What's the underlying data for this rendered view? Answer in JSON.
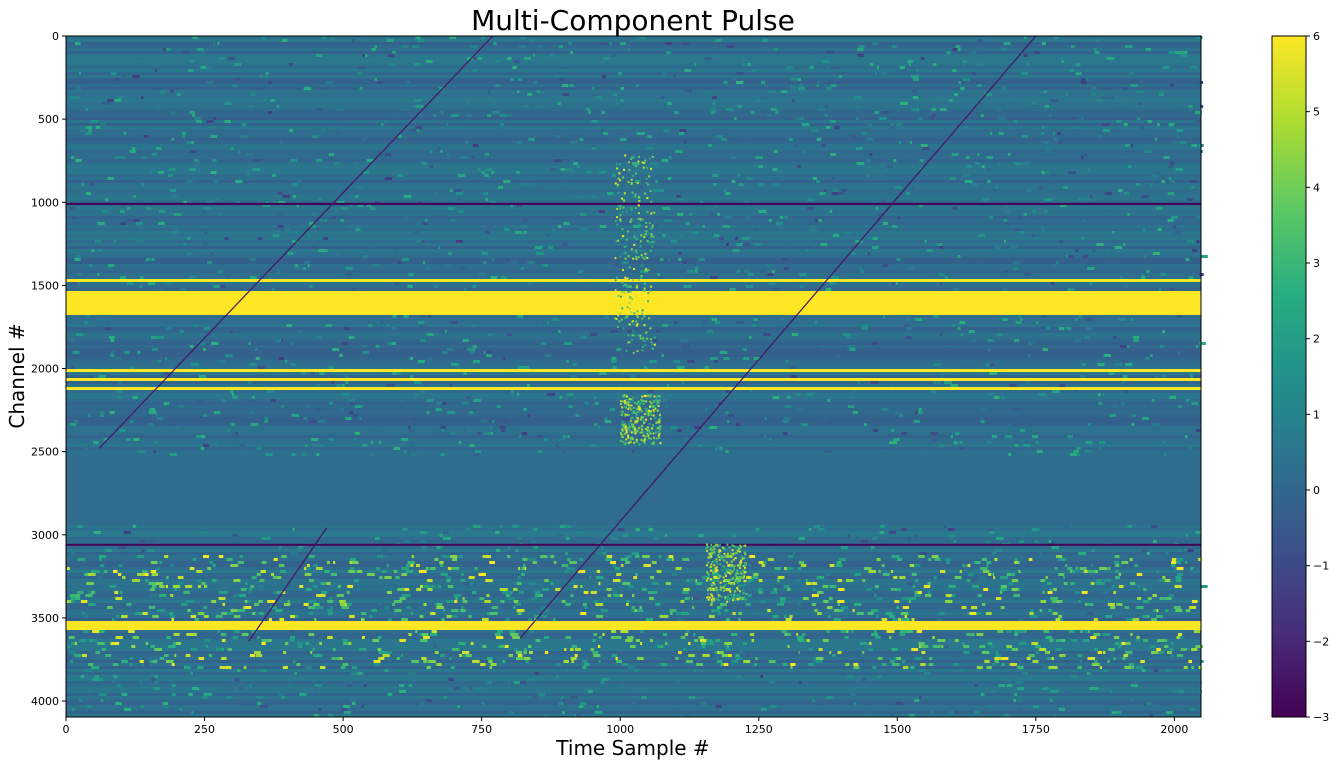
{
  "chart_data": {
    "type": "heatmap",
    "title": "Multi-Component Pulse",
    "xlabel": "Time Sample #",
    "ylabel": "Channel #",
    "xlim": [
      0,
      2048
    ],
    "ylim": [
      4096,
      0
    ],
    "x_ticks": [
      0,
      250,
      500,
      750,
      1000,
      1250,
      1500,
      1750,
      2000
    ],
    "y_ticks": [
      0,
      500,
      1000,
      1500,
      2000,
      2500,
      3000,
      3500,
      4000
    ],
    "colorbar": {
      "colormap": "viridis",
      "range": [
        -3,
        6
      ],
      "ticks": [
        -3,
        -2,
        -1,
        0,
        1,
        2,
        3,
        4,
        5,
        6
      ],
      "tick_labels": [
        "−3",
        "−2",
        "−1",
        "0",
        "1",
        "2",
        "3",
        "4",
        "5",
        "6"
      ]
    },
    "background_value": 0.2,
    "quiet_band": [
      2530,
      2940
    ],
    "masked_channels": [
      1010,
      3060
    ],
    "saturated_bands": [
      [
        1460,
        1475
      ],
      [
        1530,
        1680
      ],
      [
        2010,
        2020
      ],
      [
        2060,
        2070
      ],
      [
        2120,
        2130
      ],
      [
        3520,
        3570
      ]
    ],
    "noisy_bands": [
      [
        3130,
        3800
      ]
    ],
    "pulse_components": [
      {
        "time": 1025,
        "channel_range": [
          700,
          1900
        ]
      },
      {
        "time": 1035,
        "channel_range": [
          2150,
          2450
        ]
      },
      {
        "time": 1190,
        "channel_range": [
          3050,
          3400
        ]
      }
    ],
    "dispersed_sweeps": [
      {
        "start": [
          770,
          0
        ],
        "end": [
          60,
          2480
        ]
      },
      {
        "start": [
          1750,
          0
        ],
        "end": [
          820,
          3620
        ]
      },
      {
        "start": [
          470,
          2960
        ],
        "end": [
          330,
          3640
        ]
      }
    ]
  },
  "colors": {
    "viridis_stops": [
      "#440154",
      "#472d7b",
      "#3b528b",
      "#2c728e",
      "#21918c",
      "#28ae80",
      "#5ec962",
      "#addc30",
      "#fde725"
    ]
  }
}
